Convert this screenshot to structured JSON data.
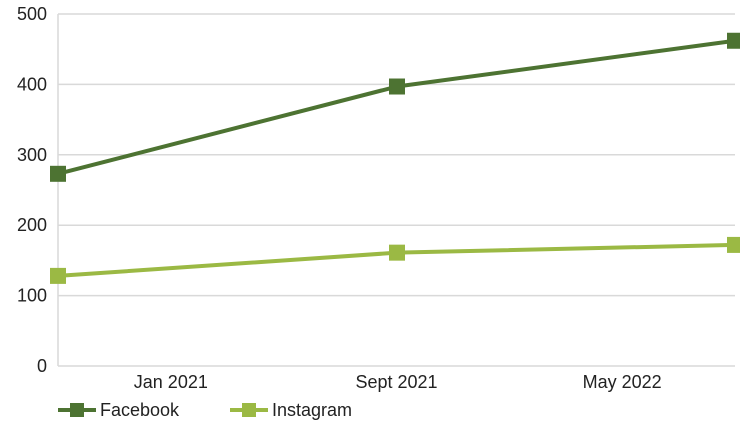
{
  "chart_data": {
    "type": "line",
    "categories": [
      "Jan 2021",
      "Sept 2021",
      "May 2022"
    ],
    "series": [
      {
        "name": "Facebook",
        "values": [
          273,
          397,
          462
        ],
        "color": "#4d7332"
      },
      {
        "name": "Instagram",
        "values": [
          128,
          161,
          172
        ],
        "color": "#9bb944"
      }
    ],
    "ylim": [
      0,
      500
    ],
    "yticks": [
      0,
      100,
      200,
      300,
      400,
      500
    ],
    "grid": true,
    "grid_color": "#d9d9d9",
    "legend_position": "bottom-left",
    "marker": "square"
  }
}
